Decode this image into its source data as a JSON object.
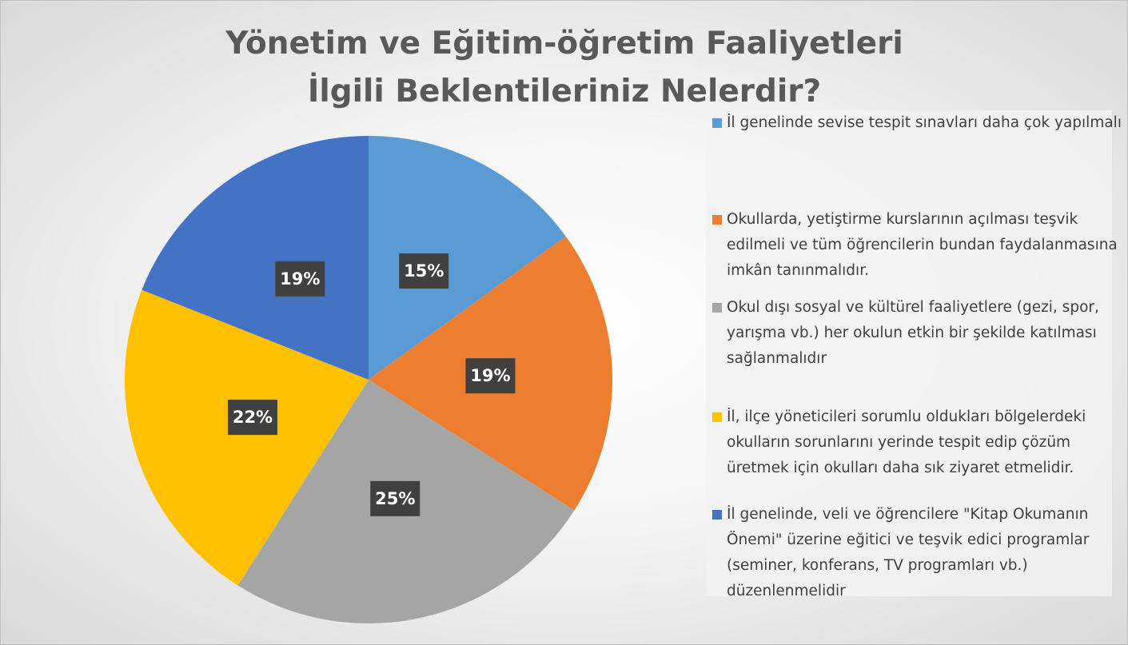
{
  "chart_data": {
    "type": "pie",
    "title": "Yönetim ve Eğitim-öğretim Faaliyetleri İlgili Beklentileriniz Nelerdir?",
    "categories": [
      "İl genelinde sevise tespit sınavları daha çok yapılmalı",
      "Okullarda, yetiştirme kurslarının açılması teşvik edilmeli ve tüm öğrencilerin bundan faydalanmasına imkân tanınmalıdır.",
      "Okul dışı sosyal ve kültürel faaliyetlere (gezi, spor, yarışma vb.) her okulun etkin bir şekilde katılması sağlanmalıdır",
      "İl, ilçe yöneticileri sorumlu oldukları bölgelerdeki okulların sorunlarını yerinde tespit edip çözüm üretmek için okulları daha sık ziyaret etmelidir.",
      "İl genelinde, veli ve öğrencilere \"Kitap Okumanın Önemi\" üzerine eğitici ve teşvik edici programlar (seminer, konferans, TV programları vb.) düzenlenmelidir"
    ],
    "values": [
      15,
      19,
      25,
      22,
      19
    ],
    "value_labels": [
      "15%",
      "19%",
      "25%",
      "22%",
      "19%"
    ],
    "colors": [
      "#5b9bd5",
      "#ed7d31",
      "#a5a5a5",
      "#ffc000",
      "#4472c4"
    ],
    "legend": "right"
  }
}
